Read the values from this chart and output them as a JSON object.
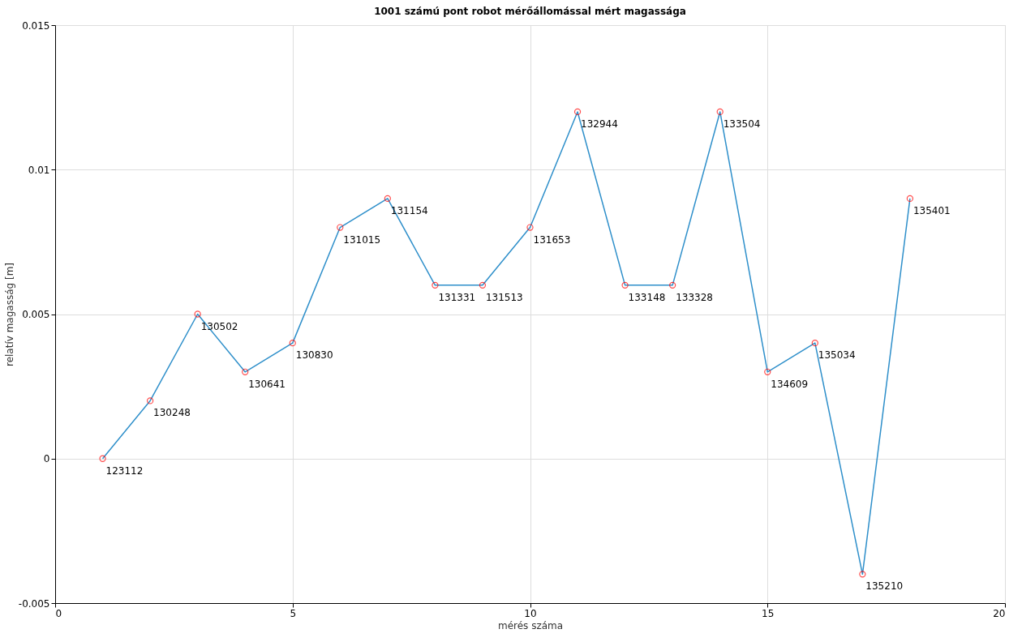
{
  "chart_data": {
    "type": "line",
    "title": "1001 számú pont robot mérőállomással mért magassága",
    "xlabel": "mérés száma",
    "ylabel": "relatív magasság [m]",
    "x": [
      1,
      2,
      3,
      4,
      5,
      6,
      7,
      8,
      9,
      10,
      11,
      12,
      13,
      14,
      15,
      16,
      17,
      18
    ],
    "series": [
      {
        "color": "#2e8fca",
        "marker": "none",
        "line_style": "solid",
        "values": [
          0,
          0.002,
          0.005,
          0.003,
          0.004,
          0.008,
          0.009,
          0.006,
          0.006,
          0.008,
          0.012,
          0.006,
          0.006,
          0.012,
          0.003,
          0.004,
          -0.004,
          0.009
        ]
      },
      {
        "type": "scatter",
        "color": "#ff0000",
        "marker": "circle",
        "values": [
          0,
          0.002,
          0.005,
          0.003,
          0.004,
          0.008,
          0.009,
          0.006,
          0.006,
          0.008,
          0.012,
          0.006,
          0.006,
          0.012,
          0.003,
          0.004,
          -0.004,
          0.009
        ]
      }
    ],
    "xlim": [
      0,
      20
    ],
    "xticks": [
      0,
      5,
      10,
      15,
      20
    ],
    "ylim": [
      -0.005,
      0.015
    ],
    "yticks": [
      -0.005,
      0,
      0.005,
      0.01,
      0.015
    ],
    "grid": true,
    "annotations": [
      {
        "text": "123112",
        "x": 1,
        "y": 0
      },
      {
        "text": "130248",
        "x": 2,
        "y": 0.002
      },
      {
        "text": "130502",
        "x": 3,
        "y": 0.005
      },
      {
        "text": "130641",
        "x": 4,
        "y": 0.003
      },
      {
        "text": "130830",
        "x": 5,
        "y": 0.004
      },
      {
        "text": "131015",
        "x": 6,
        "y": 0.008
      },
      {
        "text": "131154",
        "x": 7,
        "y": 0.009
      },
      {
        "text": "131331",
        "x": 8,
        "y": 0.006
      },
      {
        "text": "131513",
        "x": 9,
        "y": 0.006
      },
      {
        "text": "131653",
        "x": 10,
        "y": 0.008
      },
      {
        "text": "132944",
        "x": 11,
        "y": 0.012
      },
      {
        "text": "133148",
        "x": 12,
        "y": 0.006
      },
      {
        "text": "133328",
        "x": 13,
        "y": 0.006
      },
      {
        "text": "133504",
        "x": 14,
        "y": 0.012
      },
      {
        "text": "134609",
        "x": 15,
        "y": 0.003
      },
      {
        "text": "135034",
        "x": 16,
        "y": 0.004
      },
      {
        "text": "135210",
        "x": 17,
        "y": -0.004
      },
      {
        "text": "135401",
        "x": 18,
        "y": 0.009
      }
    ]
  }
}
